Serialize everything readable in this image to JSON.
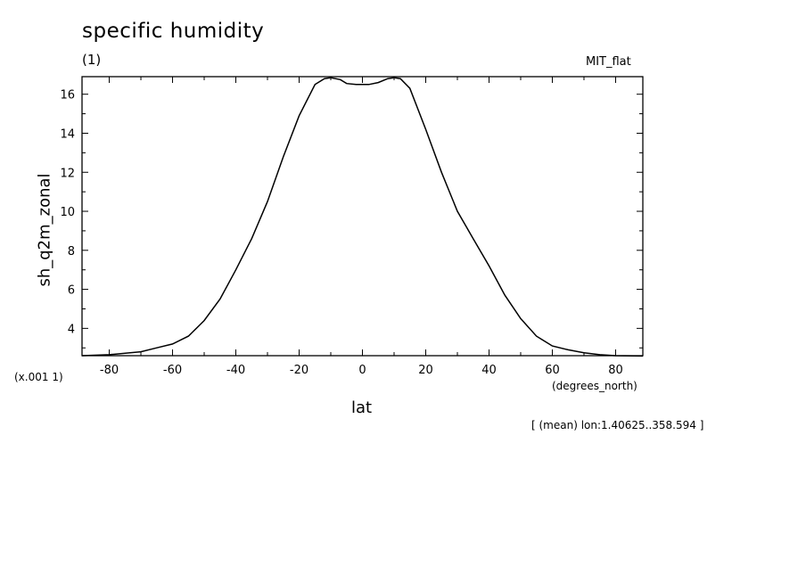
{
  "chart_data": {
    "type": "line",
    "title": "specific humidity",
    "units": "(1)",
    "dataset": "MIT_flat",
    "ylabel": "sh_q2m_zonal",
    "xlabel": "lat",
    "xunits": "(degrees_north)",
    "scale_note": "(x.001 1)",
    "subset_note": "[ (mean) lon:1.40625..358.594 ]",
    "xlim": [
      -88.6,
      88.6
    ],
    "ylim": [
      2.6,
      16.9
    ],
    "xticks": [
      -80,
      -60,
      -40,
      -20,
      0,
      20,
      40,
      60,
      80
    ],
    "xtick_labels": [
      "-80",
      "-60",
      "-40",
      "-20",
      "0",
      "20",
      "40",
      "60",
      "80"
    ],
    "yticks": [
      4,
      6,
      8,
      10,
      12,
      14,
      16
    ],
    "ytick_labels": [
      "4",
      "6",
      "8",
      "10",
      "12",
      "14",
      "16"
    ],
    "grid": false,
    "series": [
      {
        "x": [
          -88.6,
          -80,
          -70,
          -65,
          -60,
          -55,
          -50,
          -45,
          -40,
          -35,
          -30,
          -25,
          -20,
          -15,
          -12,
          -10,
          -7,
          -5,
          -2,
          0,
          2,
          5,
          8,
          10,
          12,
          15,
          20,
          25,
          30,
          35,
          40,
          45,
          50,
          55,
          60,
          65,
          70,
          75,
          80,
          88.6
        ],
        "y": [
          2.6,
          2.65,
          2.8,
          3.0,
          3.2,
          3.6,
          4.4,
          5.5,
          7.0,
          8.6,
          10.5,
          12.8,
          14.9,
          16.5,
          16.8,
          16.85,
          16.75,
          16.55,
          16.5,
          16.5,
          16.5,
          16.6,
          16.8,
          16.85,
          16.8,
          16.3,
          14.2,
          12.0,
          10.0,
          8.6,
          7.2,
          5.7,
          4.5,
          3.6,
          3.1,
          2.9,
          2.75,
          2.65,
          2.6,
          2.58
        ]
      }
    ]
  }
}
